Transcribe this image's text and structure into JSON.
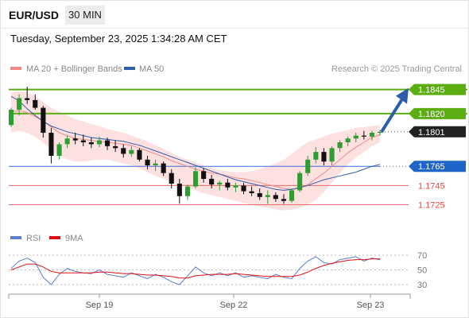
{
  "header": {
    "symbol": "EUR/USD",
    "timeframe": "30 MIN",
    "timestamp": "Tuesday, September 23, 2025 1:34:28 AM CET"
  },
  "legend": {
    "items": [
      {
        "name": "MA 20 + Bollinger Bands",
        "color": "#f08a8a"
      },
      {
        "name": "MA 50",
        "color": "#2f5da8"
      }
    ],
    "credit": "Research © 2025 Trading Central"
  },
  "rsi_legend": {
    "items": [
      {
        "name": "RSI",
        "color": "#5b7fd6"
      },
      {
        "name": "9MA",
        "color": "#e01010"
      }
    ]
  },
  "colors": {
    "bull": "#2e9e2e",
    "bear": "#111111",
    "band_fill": "#fde0e0",
    "green_level": "#5cad12",
    "blue_level": "#3a6fd8",
    "red_level": "#e86a6a",
    "arrow": "#2a5ea8"
  },
  "chart_data": [
    {
      "type": "candlestick",
      "title": "EUR/USD 30 MIN",
      "x_ticks": [
        "Sep 19",
        "Sep 22",
        "Sep 23"
      ],
      "ylim": [
        1.1713,
        1.1853
      ],
      "levels": [
        {
          "value": 1.1845,
          "label": "1.1845",
          "style": "resistance-green"
        },
        {
          "value": 1.182,
          "label": "1.1820",
          "style": "resistance-green"
        },
        {
          "value": 1.1801,
          "label": "1.1801",
          "style": "last-price"
        },
        {
          "value": 1.1765,
          "label": "1.1765",
          "style": "pivot-blue"
        },
        {
          "value": 1.1745,
          "label": "1.1745",
          "style": "support-red"
        },
        {
          "value": 1.1725,
          "label": "1.1725",
          "style": "support-red"
        }
      ],
      "forecast_arrow": {
        "from": 1.1801,
        "to": 1.1845
      },
      "ma20": [
        1.1822,
        1.1823,
        1.1821,
        1.1817,
        1.1812,
        1.1806,
        1.18,
        1.1797,
        1.1794,
        1.1793,
        1.1792,
        1.1791,
        1.179,
        1.1789,
        1.1788,
        1.1787,
        1.1784,
        1.1781,
        1.1778,
        1.1775,
        1.1771,
        1.1768,
        1.1765,
        1.1762,
        1.176,
        1.1758,
        1.1757,
        1.1755,
        1.1753,
        1.1752,
        1.175,
        1.1748,
        1.1746,
        1.1744,
        1.1742,
        1.1741,
        1.1742,
        1.1746,
        1.1752,
        1.1758,
        1.1765,
        1.1772,
        1.1779,
        1.1785,
        1.179,
        1.1795,
        1.1798
      ],
      "ma50": [
        1.1838,
        1.1833,
        1.1825,
        1.1818,
        1.1812,
        1.1807,
        1.1804,
        1.1801,
        1.1799,
        1.1797,
        1.1795,
        1.1794,
        1.1793,
        1.1792,
        1.1791,
        1.1789,
        1.1787,
        1.1784,
        1.1781,
        1.1778,
        1.1775,
        1.1772,
        1.1769,
        1.1766,
        1.1763,
        1.176,
        1.1757,
        1.1754,
        1.1751,
        1.1749,
        1.1747,
        1.1745,
        1.1743,
        1.1741,
        1.174,
        1.1741,
        1.1743,
        1.1745,
        1.1748,
        1.1751,
        1.1753,
        1.1755,
        1.1757,
        1.1759,
        1.1762,
        1.1765,
        1.1767
      ],
      "bb_upper": [
        1.1842,
        1.1843,
        1.1842,
        1.1838,
        1.1832,
        1.1826,
        1.1822,
        1.1818,
        1.1814,
        1.1812,
        1.1809,
        1.1807,
        1.1804,
        1.1802,
        1.18,
        1.1797,
        1.1794,
        1.1791,
        1.1787,
        1.1783,
        1.1779,
        1.1775,
        1.1772,
        1.1769,
        1.1766,
        1.1763,
        1.1761,
        1.176,
        1.1759,
        1.1759,
        1.176,
        1.1762,
        1.1765,
        1.1768,
        1.1772,
        1.1778,
        1.1785,
        1.179,
        1.1793,
        1.1796,
        1.1799,
        1.1801,
        1.1803,
        1.1805,
        1.1806,
        1.1807,
        1.1808
      ],
      "bb_lower": [
        1.18,
        1.1802,
        1.18,
        1.1796,
        1.179,
        1.1782,
        1.1776,
        1.1772,
        1.177,
        1.177,
        1.1771,
        1.1772,
        1.1772,
        1.177,
        1.1768,
        1.1766,
        1.1763,
        1.1759,
        1.1755,
        1.1752,
        1.1749,
        1.1746,
        1.1743,
        1.174,
        1.1737,
        1.1735,
        1.1733,
        1.1731,
        1.1729,
        1.1727,
        1.1725,
        1.1723,
        1.1722,
        1.172,
        1.1719,
        1.172,
        1.1722,
        1.1725,
        1.173,
        1.1738,
        1.1748,
        1.1758,
        1.1767,
        1.1774,
        1.178,
        1.1786,
        1.179
      ],
      "candles": [
        [
          1.1808,
          1.1826,
          1.1806,
          1.1824
        ],
        [
          1.1824,
          1.184,
          1.1818,
          1.1836
        ],
        [
          1.1836,
          1.1848,
          1.183,
          1.1834
        ],
        [
          1.1834,
          1.184,
          1.1824,
          1.1826
        ],
        [
          1.1826,
          1.1828,
          1.1795,
          1.18
        ],
        [
          1.18,
          1.1805,
          1.1768,
          1.1776
        ],
        [
          1.1776,
          1.179,
          1.1772,
          1.1788
        ],
        [
          1.1788,
          1.1797,
          1.1784,
          1.1794
        ],
        [
          1.1794,
          1.18,
          1.1788,
          1.1792
        ],
        [
          1.1792,
          1.1798,
          1.1786,
          1.179
        ],
        [
          1.179,
          1.1795,
          1.1784,
          1.1788
        ],
        [
          1.1788,
          1.1796,
          1.1785,
          1.1792
        ],
        [
          1.1792,
          1.1795,
          1.1782,
          1.1786
        ],
        [
          1.1786,
          1.1792,
          1.178,
          1.1784
        ],
        [
          1.1784,
          1.1788,
          1.1774,
          1.1778
        ],
        [
          1.1778,
          1.1786,
          1.1775,
          1.1782
        ],
        [
          1.1782,
          1.1784,
          1.177,
          1.1772
        ],
        [
          1.1772,
          1.1776,
          1.1762,
          1.1766
        ],
        [
          1.1766,
          1.1772,
          1.176,
          1.1768
        ],
        [
          1.1768,
          1.177,
          1.1755,
          1.1758
        ],
        [
          1.1758,
          1.1762,
          1.1742,
          1.1747
        ],
        [
          1.1747,
          1.1752,
          1.1726,
          1.1734
        ],
        [
          1.1734,
          1.1746,
          1.173,
          1.1744
        ],
        [
          1.1744,
          1.1764,
          1.1742,
          1.176
        ],
        [
          1.176,
          1.1763,
          1.1748,
          1.1752
        ],
        [
          1.1752,
          1.1756,
          1.1742,
          1.1746
        ],
        [
          1.1746,
          1.175,
          1.174,
          1.1748
        ],
        [
          1.1748,
          1.1752,
          1.174,
          1.1743
        ],
        [
          1.1743,
          1.1748,
          1.1738,
          1.1745
        ],
        [
          1.1745,
          1.1748,
          1.1736,
          1.1739
        ],
        [
          1.1739,
          1.1744,
          1.1734,
          1.1737
        ],
        [
          1.1737,
          1.1742,
          1.173,
          1.1733
        ],
        [
          1.1733,
          1.174,
          1.1726,
          1.1735
        ],
        [
          1.1735,
          1.1738,
          1.1728,
          1.1731
        ],
        [
          1.1731,
          1.1736,
          1.1726,
          1.1729
        ],
        [
          1.1729,
          1.1742,
          1.1727,
          1.174
        ],
        [
          1.174,
          1.176,
          1.1738,
          1.1758
        ],
        [
          1.1758,
          1.1776,
          1.1755,
          1.1772
        ],
        [
          1.1772,
          1.1785,
          1.1768,
          1.178
        ],
        [
          1.178,
          1.1784,
          1.1766,
          1.177
        ],
        [
          1.177,
          1.1786,
          1.1766,
          1.1784
        ],
        [
          1.1784,
          1.1792,
          1.178,
          1.179
        ],
        [
          1.179,
          1.1796,
          1.1786,
          1.1794
        ],
        [
          1.1794,
          1.18,
          1.179,
          1.1797
        ],
        [
          1.1797,
          1.1802,
          1.1793,
          1.1796
        ],
        [
          1.1796,
          1.1802,
          1.1792,
          1.18
        ],
        [
          1.18,
          1.1803,
          1.1797,
          1.1801
        ]
      ]
    },
    {
      "type": "line",
      "title": "RSI",
      "y_ticks": [
        "70",
        "50",
        "30"
      ],
      "ylim": [
        20,
        80
      ],
      "series": [
        {
          "name": "RSI",
          "values": [
            52,
            62,
            66,
            60,
            40,
            30,
            44,
            52,
            48,
            46,
            45,
            50,
            44,
            42,
            40,
            46,
            42,
            38,
            44,
            40,
            34,
            30,
            42,
            54,
            46,
            42,
            46,
            42,
            46,
            40,
            42,
            40,
            38,
            44,
            40,
            38,
            52,
            62,
            68,
            60,
            58,
            64,
            66,
            68,
            62,
            66,
            64
          ]
        },
        {
          "name": "9MA",
          "values": [
            50,
            54,
            58,
            58,
            54,
            48,
            46,
            46,
            46,
            46,
            46,
            47,
            47,
            46,
            45,
            45,
            44,
            43,
            43,
            42,
            41,
            39,
            39,
            42,
            43,
            44,
            44,
            44,
            45,
            44,
            43,
            42,
            41,
            41,
            41,
            41,
            43,
            47,
            52,
            56,
            59,
            61,
            63,
            64,
            64,
            65,
            65
          ]
        }
      ]
    }
  ]
}
